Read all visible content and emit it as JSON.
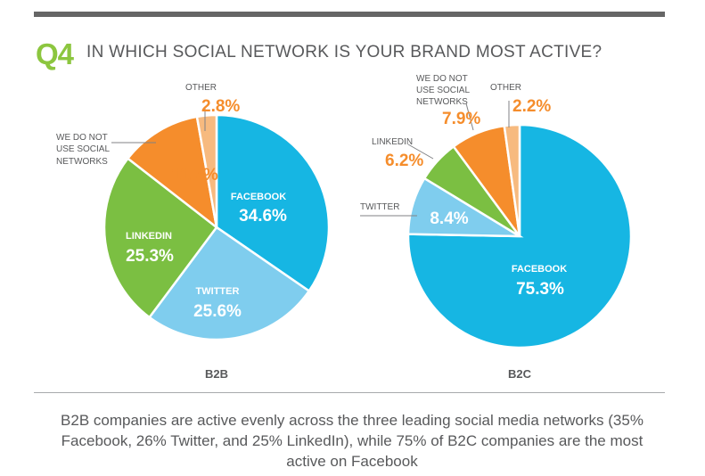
{
  "question": {
    "number": "Q4",
    "text": "IN WHICH SOCIAL NETWORK IS YOUR BRAND MOST ACTIVE?"
  },
  "summary": "B2B companies are active evenly across the three leading social media networks (35% Facebook, 26% Twitter, and 25% LinkedIn), while 75% of B2C companies are the most active on Facebook",
  "colors": {
    "question_number": "#8cc63f",
    "facebook": "#16b6e3",
    "twitter": "#7fcdee",
    "linkedin": "#7bbf42",
    "no_social": "#f58d2c",
    "other": "#f7ba7f",
    "label_orange": "#f58d2c",
    "label_gray": "#58595b",
    "divider": "#a7a9ac"
  },
  "chart_data": [
    {
      "type": "pie",
      "title": "B2B",
      "slices": [
        {
          "label": "FACEBOOK",
          "value": 34.6,
          "value_text": "34.6%"
        },
        {
          "label": "TWITTER",
          "value": 25.6,
          "value_text": "25.6%"
        },
        {
          "label": "LINKEDIN",
          "value": 25.3,
          "value_text": "25.3%"
        },
        {
          "label": "WE DO NOT USE SOCIAL NETWORKS",
          "value": 11.7,
          "value_text": "11.7%"
        },
        {
          "label": "OTHER",
          "value": 2.8,
          "value_text": "2.8%"
        }
      ]
    },
    {
      "type": "pie",
      "title": "B2C",
      "slices": [
        {
          "label": "FACEBOOK",
          "value": 75.3,
          "value_text": "75.3%"
        },
        {
          "label": "TWITTER",
          "value": 8.4,
          "value_text": "8.4%"
        },
        {
          "label": "LINKEDIN",
          "value": 6.2,
          "value_text": "6.2%"
        },
        {
          "label": "WE DO NOT USE SOCIAL NETWORKS",
          "value": 7.9,
          "value_text": "7.9%"
        },
        {
          "label": "OTHER",
          "value": 2.2,
          "value_text": "2.2%"
        }
      ]
    }
  ]
}
